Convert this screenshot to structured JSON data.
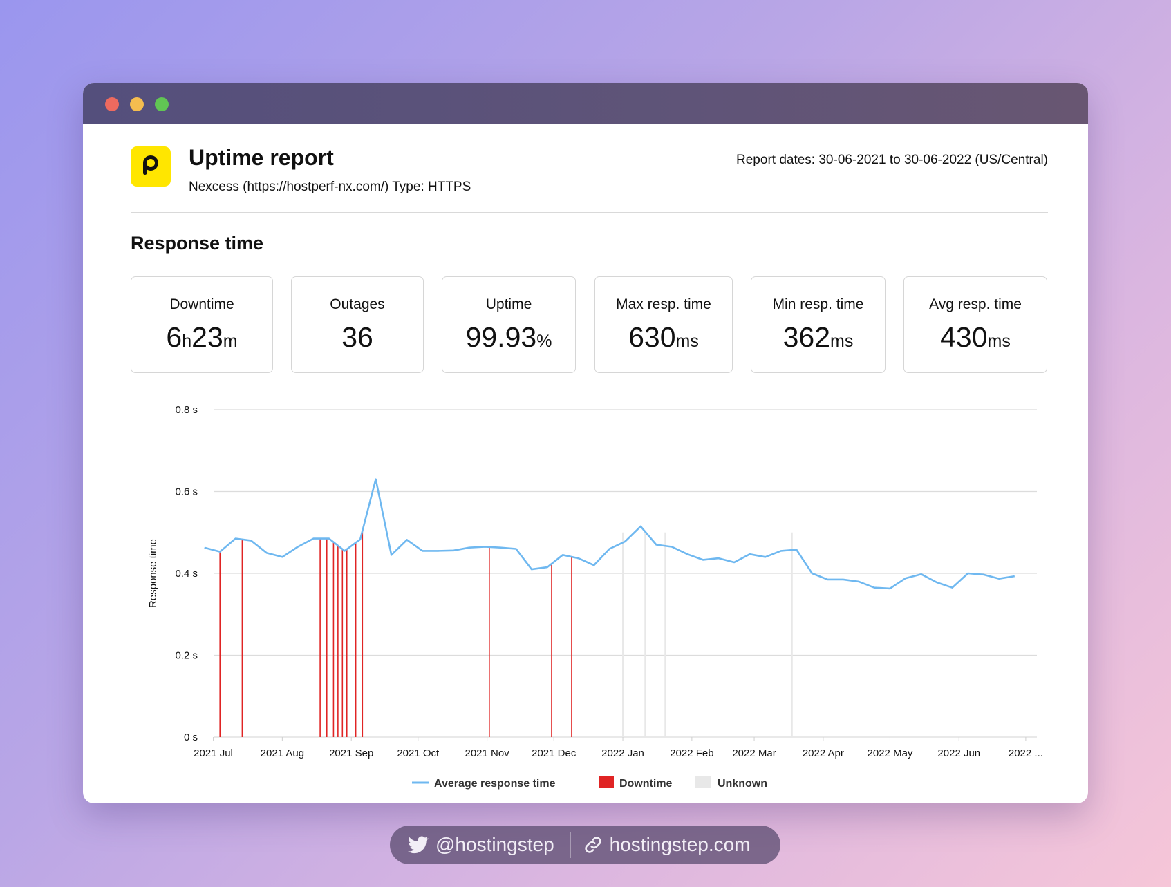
{
  "header": {
    "title": "Uptime report",
    "subtitle": "Nexcess (https://hostperf-nx.com/) Type: HTTPS",
    "report_dates": "Report dates: 30-06-2021 to 30-06-2022 (US/Central)"
  },
  "section_title": "Response time",
  "stats": [
    {
      "label": "Downtime",
      "parts": [
        {
          "t": "6",
          "u": false
        },
        {
          "t": "h",
          "u": true
        },
        {
          "t": "23",
          "u": false
        },
        {
          "t": "m",
          "u": true
        }
      ]
    },
    {
      "label": "Outages",
      "parts": [
        {
          "t": "36",
          "u": false
        }
      ]
    },
    {
      "label": "Uptime",
      "parts": [
        {
          "t": "99.93",
          "u": false
        },
        {
          "t": "%",
          "u": true
        }
      ]
    },
    {
      "label": "Max resp. time",
      "parts": [
        {
          "t": "630",
          "u": false
        },
        {
          "t": "ms",
          "u": true
        }
      ]
    },
    {
      "label": "Min resp. time",
      "parts": [
        {
          "t": "362",
          "u": false
        },
        {
          "t": "ms",
          "u": true
        }
      ]
    },
    {
      "label": "Avg resp. time",
      "parts": [
        {
          "t": "430",
          "u": false
        },
        {
          "t": "ms",
          "u": true
        }
      ]
    }
  ],
  "chart_data": {
    "type": "line",
    "ylabel": "Response time",
    "xlabel": "",
    "ylim": [
      0,
      0.8
    ],
    "yticks": [
      "0 s",
      "0.2 s",
      "0.4 s",
      "0.6 s",
      "0.8 s"
    ],
    "yticks_values": [
      0,
      0.2,
      0.4,
      0.6,
      0.8
    ],
    "xticks": [
      "2021 Jul",
      "2021 Aug",
      "2021 Sep",
      "2021 Oct",
      "2021 Nov",
      "2021 Dec",
      "2022 Jan",
      "2022 Feb",
      "2022 Mar",
      "2022 Apr",
      "2022 May",
      "2022 Jun",
      "2022 ..."
    ],
    "xticks_values": [
      "2021-07-01",
      "2021-08-01",
      "2021-09-01",
      "2021-10-01",
      "2021-11-01",
      "2021-12-01",
      "2022-01-01",
      "2022-02-01",
      "2022-03-01",
      "2022-04-01",
      "2022-05-01",
      "2022-06-01",
      "2022-07-01"
    ],
    "grid": true,
    "legend_position": "bottom",
    "series": [
      {
        "name": "Average response time",
        "color": "#6fb8f0",
        "points": [
          [
            "2021-06-27",
            0.463
          ],
          [
            "2021-07-04",
            0.453
          ],
          [
            "2021-07-11",
            0.485
          ],
          [
            "2021-07-18",
            0.48
          ],
          [
            "2021-07-25",
            0.45
          ],
          [
            "2021-08-01",
            0.44
          ],
          [
            "2021-08-08",
            0.465
          ],
          [
            "2021-08-15",
            0.485
          ],
          [
            "2021-08-22",
            0.485
          ],
          [
            "2021-08-29",
            0.455
          ],
          [
            "2021-09-05",
            0.483
          ],
          [
            "2021-09-12",
            0.63
          ],
          [
            "2021-09-19",
            0.445
          ],
          [
            "2021-09-26",
            0.482
          ],
          [
            "2021-10-03",
            0.455
          ],
          [
            "2021-10-10",
            0.455
          ],
          [
            "2021-10-17",
            0.456
          ],
          [
            "2021-10-24",
            0.463
          ],
          [
            "2021-10-31",
            0.465
          ],
          [
            "2021-11-07",
            0.463
          ],
          [
            "2021-11-14",
            0.46
          ],
          [
            "2021-11-21",
            0.41
          ],
          [
            "2021-11-28",
            0.415
          ],
          [
            "2021-12-05",
            0.445
          ],
          [
            "2021-12-12",
            0.437
          ],
          [
            "2021-12-19",
            0.42
          ],
          [
            "2021-12-26",
            0.46
          ],
          [
            "2022-01-02",
            0.478
          ],
          [
            "2022-01-09",
            0.515
          ],
          [
            "2022-01-16",
            0.47
          ],
          [
            "2022-01-23",
            0.465
          ],
          [
            "2022-01-30",
            0.447
          ],
          [
            "2022-02-06",
            0.433
          ],
          [
            "2022-02-13",
            0.437
          ],
          [
            "2022-02-20",
            0.427
          ],
          [
            "2022-02-27",
            0.447
          ],
          [
            "2022-03-06",
            0.44
          ],
          [
            "2022-03-13",
            0.455
          ],
          [
            "2022-03-20",
            0.458
          ],
          [
            "2022-03-27",
            0.4
          ],
          [
            "2022-04-03",
            0.385
          ],
          [
            "2022-04-10",
            0.385
          ],
          [
            "2022-04-17",
            0.38
          ],
          [
            "2022-04-24",
            0.365
          ],
          [
            "2022-05-01",
            0.363
          ],
          [
            "2022-05-08",
            0.388
          ],
          [
            "2022-05-15",
            0.398
          ],
          [
            "2022-05-22",
            0.378
          ],
          [
            "2022-05-29",
            0.365
          ],
          [
            "2022-06-05",
            0.4
          ],
          [
            "2022-06-12",
            0.397
          ],
          [
            "2022-06-19",
            0.387
          ],
          [
            "2022-06-26",
            0.393
          ]
        ]
      },
      {
        "name": "Downtime",
        "color": "#e02424",
        "events": [
          "2021-07-04",
          "2021-07-14",
          "2021-08-18",
          "2021-08-21",
          "2021-08-24",
          "2021-08-26",
          "2021-08-28",
          "2021-08-30",
          "2021-09-03",
          "2021-09-06",
          "2021-11-02",
          "2021-11-30",
          "2021-12-09"
        ]
      },
      {
        "name": "Unknown",
        "color": "#e8e8e8",
        "events": [
          "2022-01-01",
          "2022-01-11",
          "2022-01-20",
          "2022-03-18"
        ]
      }
    ]
  },
  "footer": {
    "twitter_handle": "@hostingstep",
    "website": "hostingstep.com",
    "twitter_icon": "twitter-bird-icon",
    "link_icon": "link-icon"
  }
}
